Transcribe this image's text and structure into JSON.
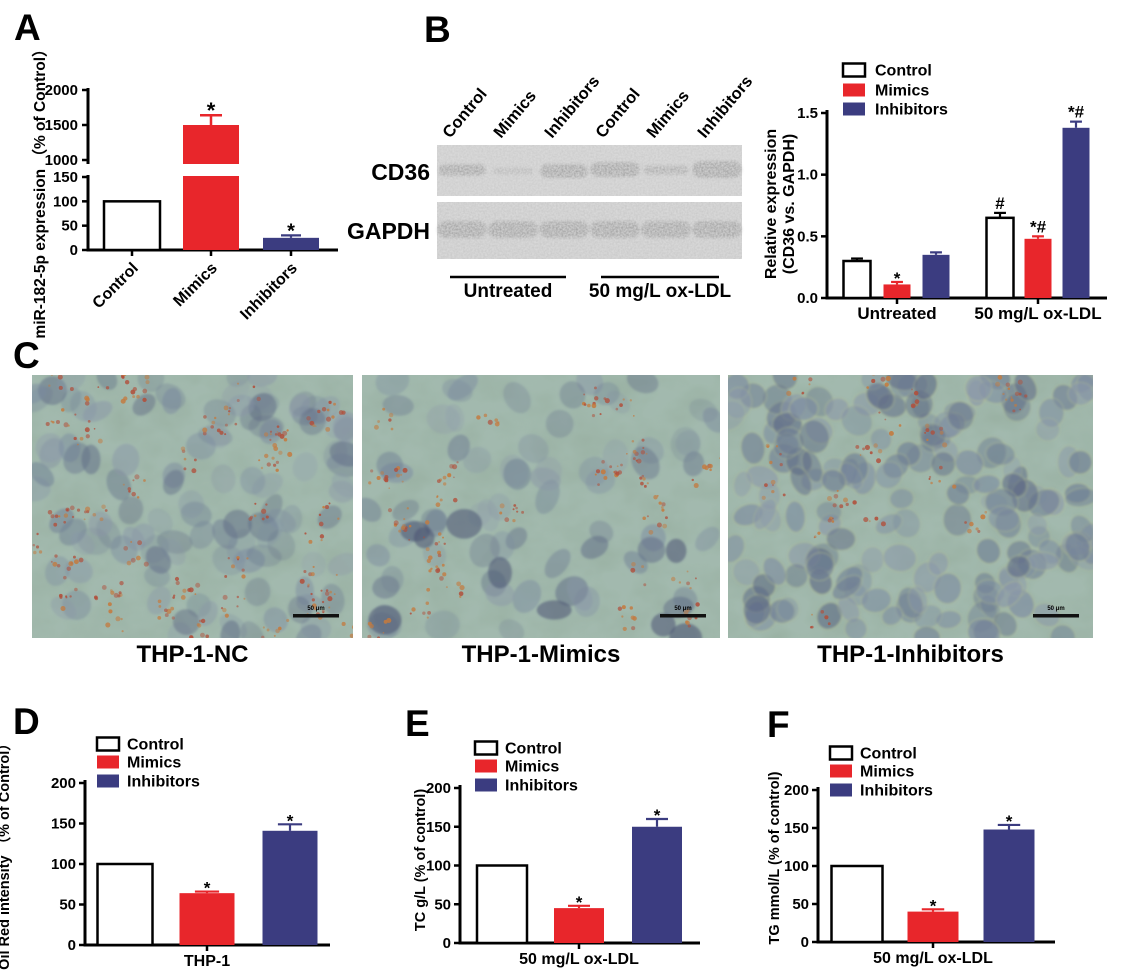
{
  "figure": {
    "type": "scientific-figure",
    "background": "#FFFFFF",
    "colors": {
      "control": "#FFFFFF",
      "mimics": "#E8262B",
      "inhibitors": "#3B3C80",
      "axis": "#000000",
      "micrograph_background": "#97AE9F",
      "micrograph_cell": "#7C8BA0",
      "micrograph_cell_dark": "#5E6A85",
      "micrograph_droplet": "#B14F3B",
      "micrograph_membrane": "#B9C490"
    },
    "legend_entries": [
      "Control",
      "Mimics",
      "Inhibitors"
    ],
    "panels": {
      "A": {
        "label": "A"
      },
      "B": {
        "label": "B",
        "blot": {
          "lane_labels": [
            "Control",
            "Mimics",
            "Inhibitors",
            "Control",
            "Mimics",
            "Inhibitors"
          ],
          "rows": [
            {
              "label": "CD36",
              "band_intensities": [
                0.85,
                0.3,
                0.95,
                0.95,
                0.55,
                1.0
              ]
            },
            {
              "label": "GAPDH",
              "band_intensities": [
                0.97,
                0.97,
                0.97,
                0.97,
                0.97,
                0.97
              ]
            }
          ],
          "group_labels": [
            "Untreated",
            "50 mg/L ox-LDL"
          ]
        }
      },
      "C": {
        "label": "C",
        "images": [
          {
            "caption": "THP-1-NC",
            "scale_bar_label": "50 μm",
            "cell_density": "moderate",
            "oil_red_staining": "moderate"
          },
          {
            "caption": "THP-1-Mimics",
            "scale_bar_label": "50 μm",
            "cell_density": "reduced",
            "oil_red_staining": "reduced"
          },
          {
            "caption": "THP-1-Inhibitors",
            "scale_bar_label": "50 μm",
            "cell_density": "dense",
            "oil_red_staining": "low"
          }
        ]
      },
      "D": {
        "label": "D"
      },
      "E": {
        "label": "E"
      },
      "F": {
        "label": "F"
      }
    }
  },
  "chart_data": [
    {
      "id": "A",
      "type": "bar",
      "ylabel": "miR-182-5p expression （% of Control）",
      "categories": [
        "Control",
        "Mimics",
        "Inhibitors"
      ],
      "values": [
        100,
        1500,
        25
      ],
      "errors": [
        0,
        140,
        5
      ],
      "annotations": [
        "",
        "*",
        "*"
      ],
      "series_colors": [
        "control",
        "mimics",
        "inhibitors"
      ],
      "axis_break": true,
      "lower_ticks": [
        0,
        50,
        100,
        150
      ],
      "upper_ticks": [
        1000,
        1500,
        2000
      ]
    },
    {
      "id": "B",
      "type": "grouped-bar",
      "ylabel_lines": [
        "Relative expression",
        "(CD36 vs. GAPDH)"
      ],
      "yticks": [
        "0.0",
        "0.5",
        "1.0",
        "1.5"
      ],
      "ylim": [
        0,
        1.5
      ],
      "groups": [
        "Untreated",
        "50 mg/L ox-LDL"
      ],
      "legend": [
        "Control",
        "Mimics",
        "Inhibitors"
      ],
      "series": [
        {
          "name": "Control",
          "color": "control",
          "values": [
            0.3,
            0.65
          ],
          "errors": [
            0.02,
            0.04
          ],
          "annotations": [
            "",
            "#"
          ]
        },
        {
          "name": "Mimics",
          "color": "mimics",
          "values": [
            0.11,
            0.48
          ],
          "errors": [
            0.02,
            0.02
          ],
          "annotations": [
            "*",
            "*#"
          ]
        },
        {
          "name": "Inhibitors",
          "color": "inhibitors",
          "values": [
            0.35,
            1.38
          ],
          "errors": [
            0.02,
            0.05
          ],
          "annotations": [
            "",
            "*#"
          ]
        }
      ]
    },
    {
      "id": "D",
      "type": "grouped-bar",
      "ylabel": "Oil Red intensity （% of Control）",
      "yticks": [
        0,
        50,
        100,
        150,
        200
      ],
      "ylim": [
        0,
        200
      ],
      "groups": [
        "THP-1"
      ],
      "legend": [
        "Control",
        "Mimics",
        "Inhibitors"
      ],
      "series": [
        {
          "name": "Control",
          "color": "control",
          "values": [
            100
          ],
          "errors": [
            0
          ],
          "annotations": [
            ""
          ]
        },
        {
          "name": "Mimics",
          "color": "mimics",
          "values": [
            64
          ],
          "errors": [
            2
          ],
          "annotations": [
            "*"
          ]
        },
        {
          "name": "Inhibitors",
          "color": "inhibitors",
          "values": [
            141
          ],
          "errors": [
            8
          ],
          "annotations": [
            "*"
          ]
        }
      ]
    },
    {
      "id": "E",
      "type": "grouped-bar",
      "ylabel": "TC g/L (% of control)",
      "yticks": [
        0,
        50,
        100,
        150,
        200
      ],
      "ylim": [
        0,
        200
      ],
      "groups": [
        "50 mg/L ox-LDL"
      ],
      "legend": [
        "Control",
        "Mimics",
        "Inhibitors"
      ],
      "series": [
        {
          "name": "Control",
          "color": "control",
          "values": [
            100
          ],
          "errors": [
            0
          ],
          "annotations": [
            ""
          ]
        },
        {
          "name": "Mimics",
          "color": "mimics",
          "values": [
            45
          ],
          "errors": [
            3
          ],
          "annotations": [
            "*"
          ]
        },
        {
          "name": "Inhibitors",
          "color": "inhibitors",
          "values": [
            150
          ],
          "errors": [
            10
          ],
          "annotations": [
            "*"
          ]
        }
      ]
    },
    {
      "id": "F",
      "type": "grouped-bar",
      "ylabel": "TG mmol/L (% of control)",
      "yticks": [
        0,
        50,
        100,
        150,
        200
      ],
      "ylim": [
        0,
        200
      ],
      "groups": [
        "50 mg/L ox-LDL"
      ],
      "legend": [
        "Control",
        "Mimics",
        "Inhibitors"
      ],
      "series": [
        {
          "name": "Control",
          "color": "control",
          "values": [
            100
          ],
          "errors": [
            0
          ],
          "annotations": [
            ""
          ]
        },
        {
          "name": "Mimics",
          "color": "mimics",
          "values": [
            40
          ],
          "errors": [
            3
          ],
          "annotations": [
            "*"
          ]
        },
        {
          "name": "Inhibitors",
          "color": "inhibitors",
          "values": [
            148
          ],
          "errors": [
            6
          ],
          "annotations": [
            "*"
          ]
        }
      ]
    }
  ]
}
